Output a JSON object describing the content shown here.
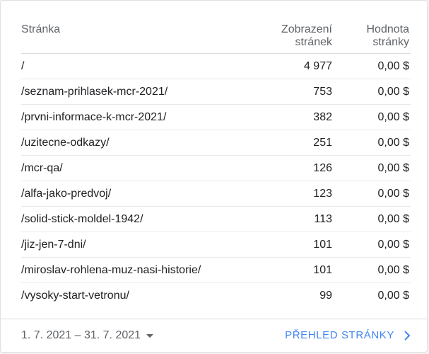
{
  "table": {
    "headers": {
      "page": "Stránka",
      "views_line1": "Zobrazení",
      "views_line2": "stránek",
      "value_line1": "Hodnota",
      "value_line2": "stránky"
    },
    "rows": [
      {
        "page": "/",
        "views": "4 977",
        "value": "0,00 $"
      },
      {
        "page": "/seznam-prihlasek-mcr-2021/",
        "views": "753",
        "value": "0,00 $"
      },
      {
        "page": "/prvni-informace-k-mcr-2021/",
        "views": "382",
        "value": "0,00 $"
      },
      {
        "page": "/uzitecne-odkazy/",
        "views": "251",
        "value": "0,00 $"
      },
      {
        "page": "/mcr-qa/",
        "views": "126",
        "value": "0,00 $"
      },
      {
        "page": "/alfa-jako-predvoj/",
        "views": "123",
        "value": "0,00 $"
      },
      {
        "page": "/solid-stick-moldel-1942/",
        "views": "113",
        "value": "0,00 $"
      },
      {
        "page": "/jiz-jen-7-dni/",
        "views": "101",
        "value": "0,00 $"
      },
      {
        "page": "/miroslav-rohlena-muz-nasi-historie/",
        "views": "101",
        "value": "0,00 $"
      },
      {
        "page": "/vysoky-start-vetronu/",
        "views": "99",
        "value": "0,00 $"
      }
    ]
  },
  "footer": {
    "date_range": "1. 7. 2021 – 31. 7. 2021",
    "link_label": "PŘEHLED STRÁNKY",
    "date_icon": "caret-down-icon",
    "link_icon": "chevron-right-icon"
  },
  "colors": {
    "accent": "#4285f4",
    "text": "#202124",
    "muted": "#5f6368"
  }
}
